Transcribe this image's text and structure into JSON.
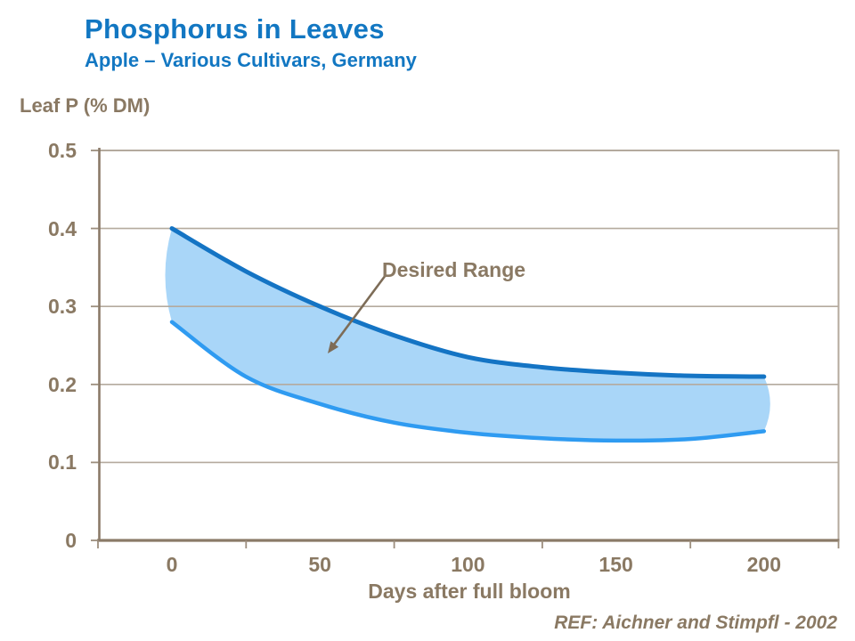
{
  "header": {
    "title": "Phosphorus in Leaves",
    "subtitle": "Apple – Various Cultivars, Germany"
  },
  "footer": {
    "reference": "REF: Aichner and Stimpfl - 2002"
  },
  "chart_data": {
    "type": "area",
    "title": "Phosphorus in Leaves",
    "subtitle": "Apple – Various Cultivars, Germany",
    "ylabel": "Leaf P (% DM)",
    "xlabel": "Days after full bloom",
    "ylim": [
      0,
      0.5
    ],
    "xlim": [
      0,
      200
    ],
    "y_ticks": [
      0,
      0.1,
      0.2,
      0.3,
      0.4,
      0.5
    ],
    "y_tick_labels": [
      "0",
      "0.1",
      "0.2",
      "0.3",
      "0.4",
      "0.5"
    ],
    "x_ticks": [
      0,
      50,
      100,
      150,
      200
    ],
    "x_tick_labels": [
      "0",
      "50",
      "100",
      "150",
      "200"
    ],
    "grid": "horizontal",
    "legend": "none",
    "annotation": {
      "label": "Desired Range",
      "points_to": "shaded band"
    },
    "x": [
      0,
      25,
      50,
      75,
      100,
      125,
      150,
      175,
      200
    ],
    "series": [
      {
        "name": "upper limit",
        "values": [
          0.4,
          0.345,
          0.3,
          0.263,
          0.235,
          0.222,
          0.215,
          0.211,
          0.21
        ]
      },
      {
        "name": "lower limit",
        "values": [
          0.28,
          0.21,
          0.175,
          0.151,
          0.138,
          0.131,
          0.128,
          0.13,
          0.14
        ]
      }
    ]
  },
  "colors": {
    "title_blue": "#1277C2",
    "band_fill": "#A9D6F8",
    "upper_line": "#1474C4",
    "lower_line": "#2F9BF1",
    "grid": "#B4AA9E",
    "axis": "#8A7A68",
    "tick": "#9C8E7E",
    "brown_text": "#8A7963",
    "arrow": "#7D6C57"
  }
}
